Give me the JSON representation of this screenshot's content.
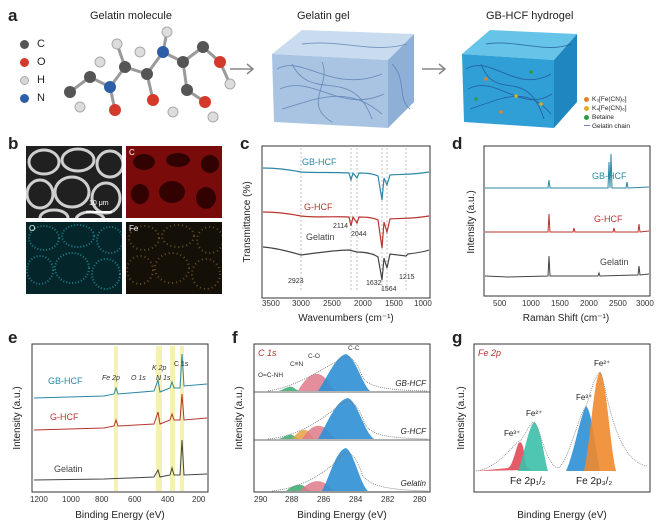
{
  "panel_a": {
    "letter": "a",
    "titles": [
      "Gelatin molecule",
      "Gelatin gel",
      "GB-HCF hydrogel"
    ],
    "atom_legend": [
      {
        "symbol": "C",
        "color": "#555555"
      },
      {
        "symbol": "O",
        "color": "#d33a2c"
      },
      {
        "symbol": "H",
        "color": "#cfcfcf"
      },
      {
        "symbol": "N",
        "color": "#2c5fa8"
      }
    ],
    "hydrogel_legend": [
      {
        "label": "K₃[Fe(CN)₆]",
        "color": "#e0822d"
      },
      {
        "label": "K₄[Fe(CN)₆]",
        "color": "#d8b020"
      },
      {
        "label": "Betaine",
        "color": "#2e9a46"
      },
      {
        "label": "Gelatin chain",
        "color": "#6a7fb0"
      }
    ]
  },
  "panel_b": {
    "letter": "b",
    "maps": [
      "C",
      "O",
      "Fe"
    ],
    "scale_bar": "10 μm"
  },
  "panel_c": {
    "letter": "c",
    "curve_labels": [
      "GB-HCF",
      "G-HCF",
      "Gelatin"
    ],
    "peak_labels": [
      "2114",
      "2044",
      "2923",
      "1632",
      "1564",
      "1215"
    ]
  },
  "panel_d": {
    "letter": "d",
    "curve_labels": [
      "GB-HCF",
      "G-HCF",
      "Gelatin"
    ]
  },
  "panel_e": {
    "letter": "e",
    "curve_labels": [
      "GB-HCF",
      "G-HCF",
      "Gelatin"
    ],
    "peak_labels": [
      "Fe 2p",
      "O 1s",
      "K 2p",
      "N 1s",
      "C 1s"
    ]
  },
  "panel_f": {
    "letter": "f",
    "title": "C 1s",
    "curve_labels": [
      "GB-HCF",
      "G-HCF",
      "Gelatin"
    ],
    "peak_labels": [
      "O=C-NH",
      "C≡N",
      "C-O",
      "C-C"
    ]
  },
  "panel_g": {
    "letter": "g",
    "title": "Fe 2p",
    "peak_labels": [
      "Fe³⁺",
      "Fe²⁺",
      "Fe³⁺",
      "Fe²⁺"
    ],
    "region_labels": [
      "Fe 2p₁/₂",
      "Fe 2p₃/₂"
    ]
  },
  "chart_data": [
    {
      "type": "line",
      "panel": "c",
      "xlabel": "Wavenumbers (cm⁻¹)",
      "ylabel": "Transmittance (%)",
      "xlim": [
        3600,
        900
      ],
      "xticks": [
        3500,
        3000,
        2500,
        2000,
        1500,
        1000
      ],
      "series": [
        {
          "name": "GB-HCF"
        },
        {
          "name": "G-HCF"
        },
        {
          "name": "Gelatin"
        }
      ]
    },
    {
      "type": "line",
      "panel": "d",
      "xlabel": "Raman Shift (cm⁻¹)",
      "ylabel": "Intensity (a.u.)",
      "xlim": [
        400,
        3200
      ],
      "xticks": [
        500,
        1000,
        1500,
        2000,
        2500,
        3000
      ],
      "series": [
        {
          "name": "GB-HCF"
        },
        {
          "name": "G-HCF"
        },
        {
          "name": "Gelatin"
        }
      ]
    },
    {
      "type": "line",
      "panel": "e",
      "xlabel": "Binding Energy (eV)",
      "ylabel": "Intensity (a.u.)",
      "xlim": [
        1250,
        150
      ],
      "xticks": [
        1200,
        1000,
        800,
        600,
        400,
        200
      ],
      "series": [
        {
          "name": "GB-HCF"
        },
        {
          "name": "G-HCF"
        },
        {
          "name": "Gelatin"
        }
      ]
    },
    {
      "type": "area",
      "panel": "f",
      "xlabel": "Binding Energy (eV)",
      "ylabel": "Intensity (a.u.)",
      "xlim": [
        291,
        280
      ],
      "xticks": [
        290,
        288,
        286,
        284,
        282,
        280
      ],
      "series": [
        {
          "name": "GB-HCF"
        },
        {
          "name": "G-HCF"
        },
        {
          "name": "Gelatin"
        }
      ]
    },
    {
      "type": "area",
      "panel": "g",
      "xlabel": "Binding Energy (eV)",
      "ylabel": "Intensity (a.u.)"
    }
  ]
}
